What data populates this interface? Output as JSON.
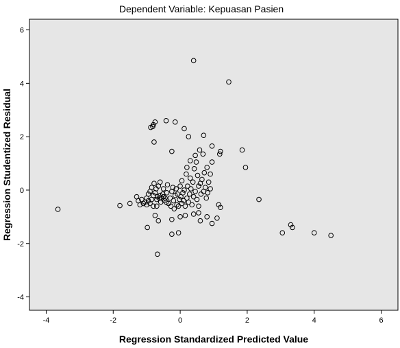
{
  "chart_data": {
    "type": "scatter",
    "title": "Dependent Variable: Kepuasan Pasien",
    "xlabel": "Regression Standardized Predicted Value",
    "ylabel": "Regression Studentized Residual",
    "xlim": [
      -4.5,
      6.5
    ],
    "ylim": [
      -4.5,
      6.4
    ],
    "xticks": [
      -4,
      -2,
      0,
      2,
      4,
      6
    ],
    "yticks": [
      -4,
      -2,
      0,
      2,
      4,
      6
    ],
    "grid": false,
    "legend": "none",
    "colors": {
      "plot_background": "#e6e6e6",
      "marker": "#000000"
    },
    "points": [
      [
        -3.65,
        -0.72
      ],
      [
        -1.8,
        -0.58
      ],
      [
        -1.5,
        -0.5
      ],
      [
        -1.3,
        -0.25
      ],
      [
        -1.25,
        -0.4
      ],
      [
        -1.2,
        -0.55
      ],
      [
        -1.15,
        -0.35
      ],
      [
        -1.1,
        -0.5
      ],
      [
        -1.05,
        -0.45
      ],
      [
        -1.0,
        -0.3
      ],
      [
        -1.0,
        -0.55
      ],
      [
        -0.95,
        -0.4
      ],
      [
        -0.95,
        -0.15
      ],
      [
        -0.9,
        -0.5
      ],
      [
        -0.9,
        -0.05
      ],
      [
        -0.85,
        -0.35
      ],
      [
        -0.85,
        0.1
      ],
      [
        -0.8,
        -0.2
      ],
      [
        -0.8,
        -0.6
      ],
      [
        -0.78,
        0.25
      ],
      [
        -0.75,
        -0.1
      ],
      [
        -0.72,
        0.05
      ],
      [
        -0.7,
        -0.35
      ],
      [
        -0.7,
        -0.6
      ],
      [
        -0.68,
        -0.25
      ],
      [
        -0.65,
        0.15
      ],
      [
        -0.62,
        -0.3
      ],
      [
        -0.6,
        -0.2
      ],
      [
        -0.6,
        0.3
      ],
      [
        -0.58,
        -0.45
      ],
      [
        -0.55,
        -0.3
      ],
      [
        -0.52,
        -0.15
      ],
      [
        -0.5,
        -0.25
      ],
      [
        -0.5,
        0.05
      ],
      [
        -0.48,
        -0.38
      ],
      [
        -0.45,
        -0.3
      ],
      [
        -0.42,
        -0.45
      ],
      [
        -0.4,
        -0.1
      ],
      [
        -0.38,
        0.2
      ],
      [
        -0.35,
        -0.5
      ],
      [
        -0.3,
        -0.3
      ],
      [
        -0.28,
        -0.6
      ],
      [
        -0.25,
        -0.05
      ],
      [
        -0.22,
        0.1
      ],
      [
        -0.2,
        -0.4
      ],
      [
        -0.18,
        -0.7
      ],
      [
        -0.15,
        -0.2
      ],
      [
        -0.12,
        0.05
      ],
      [
        -0.1,
        -0.55
      ],
      [
        -0.08,
        -0.15
      ],
      [
        -0.05,
        -0.6
      ],
      [
        -0.02,
        -0.35
      ],
      [
        0.0,
        0.15
      ],
      [
        0.02,
        -0.25
      ],
      [
        0.05,
        -0.5
      ],
      [
        0.05,
        0.35
      ],
      [
        0.08,
        -0.1
      ],
      [
        0.1,
        -0.4
      ],
      [
        0.12,
        0.0
      ],
      [
        0.15,
        -0.6
      ],
      [
        0.18,
        0.6
      ],
      [
        0.2,
        -0.3
      ],
      [
        0.22,
        0.15
      ],
      [
        0.25,
        -0.45
      ],
      [
        0.28,
        -0.15
      ],
      [
        0.3,
        0.45
      ],
      [
        0.32,
        0.05
      ],
      [
        0.35,
        -0.55
      ],
      [
        0.38,
        0.3
      ],
      [
        0.4,
        -0.25
      ],
      [
        0.42,
        0.8
      ],
      [
        0.45,
        -0.05
      ],
      [
        0.48,
        1.05
      ],
      [
        0.5,
        -0.35
      ],
      [
        0.52,
        0.55
      ],
      [
        0.55,
        0.15
      ],
      [
        0.55,
        -0.6
      ],
      [
        0.58,
        1.5
      ],
      [
        0.6,
        0.25
      ],
      [
        0.62,
        -0.15
      ],
      [
        0.65,
        0.4
      ],
      [
        0.68,
        1.35
      ],
      [
        0.7,
        -0.05
      ],
      [
        0.72,
        0.65
      ],
      [
        0.75,
        0.1
      ],
      [
        0.78,
        -0.3
      ],
      [
        0.8,
        0.85
      ],
      [
        0.82,
        -0.1
      ],
      [
        0.85,
        0.3
      ],
      [
        0.9,
        0.05
      ],
      [
        0.55,
        -0.85
      ],
      [
        0.6,
        -1.15
      ],
      [
        0.8,
        -1.0
      ],
      [
        0.95,
        -1.25
      ],
      [
        1.1,
        -1.05
      ],
      [
        1.15,
        -0.55
      ],
      [
        1.2,
        -0.65
      ],
      [
        -0.25,
        -1.1
      ],
      [
        0.0,
        -1.0
      ],
      [
        0.15,
        -0.95
      ],
      [
        0.4,
        -0.9
      ],
      [
        -0.65,
        -1.15
      ],
      [
        -0.75,
        -0.95
      ],
      [
        -0.98,
        -1.4
      ],
      [
        -0.25,
        -1.65
      ],
      [
        -0.05,
        -1.6
      ],
      [
        -0.68,
        -2.4
      ],
      [
        -0.75,
        2.55
      ],
      [
        -0.8,
        2.45
      ],
      [
        -0.88,
        2.35
      ],
      [
        -0.82,
        2.38
      ],
      [
        -0.42,
        2.6
      ],
      [
        -0.15,
        2.55
      ],
      [
        0.12,
        2.3
      ],
      [
        0.25,
        2.0
      ],
      [
        0.7,
        2.05
      ],
      [
        0.95,
        1.65
      ],
      [
        -0.78,
        1.8
      ],
      [
        -0.25,
        1.45
      ],
      [
        0.3,
        1.1
      ],
      [
        0.45,
        1.3
      ],
      [
        1.2,
        1.45
      ],
      [
        1.18,
        1.35
      ],
      [
        0.9,
        0.6
      ],
      [
        0.95,
        1.05
      ],
      [
        0.2,
        0.85
      ],
      [
        1.85,
        1.5
      ],
      [
        1.95,
        0.85
      ],
      [
        1.45,
        4.05
      ],
      [
        0.4,
        4.85
      ],
      [
        2.35,
        -0.35
      ],
      [
        3.05,
        -1.6
      ],
      [
        3.3,
        -1.3
      ],
      [
        3.35,
        -1.4
      ],
      [
        4.0,
        -1.6
      ],
      [
        4.5,
        -1.7
      ]
    ]
  }
}
